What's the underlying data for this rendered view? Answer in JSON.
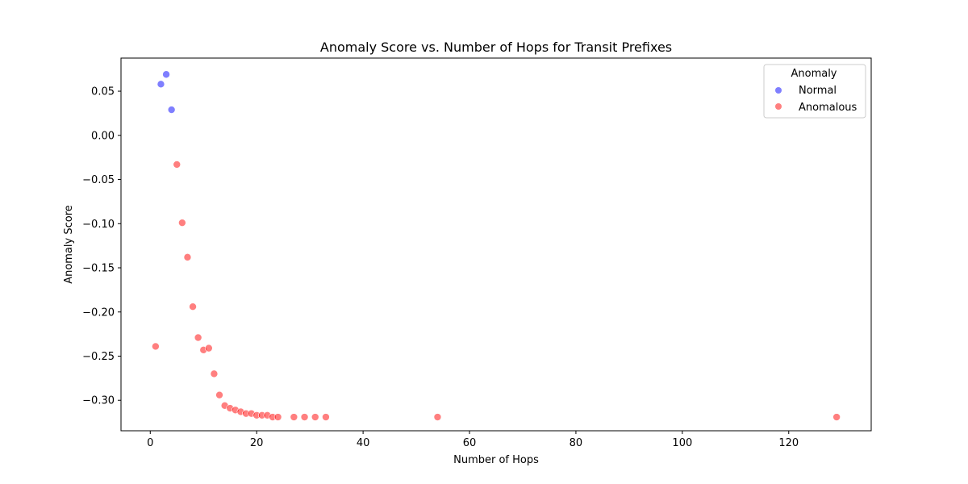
{
  "chart_data": {
    "type": "scatter",
    "title": "Anomaly Score vs. Number of Hops for Transit Prefixes",
    "xlabel": "Number of Hops",
    "ylabel": "Anomaly Score",
    "xlim": [
      -5.5,
      135.5
    ],
    "ylim": [
      -0.3345,
      0.0875
    ],
    "xticks": [
      0,
      20,
      40,
      60,
      80,
      100,
      120
    ],
    "yticks": [
      0.05,
      0.0,
      -0.05,
      -0.1,
      -0.15,
      -0.2,
      -0.25,
      -0.3
    ],
    "ytick_labels": [
      "0.05",
      "0.00",
      "−0.05",
      "−0.10",
      "−0.15",
      "−0.20",
      "−0.25",
      "−0.30"
    ],
    "grid": false,
    "legend": {
      "title": "Anomaly",
      "placement": "top-right",
      "entries": [
        {
          "label": "Normal",
          "color": "#0000ff"
        },
        {
          "label": "Anomalous",
          "color": "#ff0000"
        }
      ]
    },
    "series": [
      {
        "name": "Normal",
        "color": "#0000ff",
        "points": [
          {
            "x": 2,
            "y": 0.058
          },
          {
            "x": 3,
            "y": 0.069
          },
          {
            "x": 4,
            "y": 0.029
          }
        ]
      },
      {
        "name": "Anomalous",
        "color": "#ff0000",
        "points": [
          {
            "x": 1,
            "y": -0.239
          },
          {
            "x": 5,
            "y": -0.033
          },
          {
            "x": 6,
            "y": -0.099
          },
          {
            "x": 7,
            "y": -0.138
          },
          {
            "x": 8,
            "y": -0.194
          },
          {
            "x": 9,
            "y": -0.229
          },
          {
            "x": 10,
            "y": -0.243
          },
          {
            "x": 11,
            "y": -0.241
          },
          {
            "x": 12,
            "y": -0.27
          },
          {
            "x": 13,
            "y": -0.294
          },
          {
            "x": 14,
            "y": -0.306
          },
          {
            "x": 15,
            "y": -0.309
          },
          {
            "x": 16,
            "y": -0.311
          },
          {
            "x": 17,
            "y": -0.313
          },
          {
            "x": 18,
            "y": -0.315
          },
          {
            "x": 19,
            "y": -0.315
          },
          {
            "x": 20,
            "y": -0.317
          },
          {
            "x": 21,
            "y": -0.317
          },
          {
            "x": 22,
            "y": -0.317
          },
          {
            "x": 23,
            "y": -0.319
          },
          {
            "x": 24,
            "y": -0.319
          },
          {
            "x": 27,
            "y": -0.319
          },
          {
            "x": 29,
            "y": -0.319
          },
          {
            "x": 31,
            "y": -0.319
          },
          {
            "x": 33,
            "y": -0.319
          },
          {
            "x": 54,
            "y": -0.319
          },
          {
            "x": 129,
            "y": -0.319
          }
        ]
      }
    ]
  }
}
